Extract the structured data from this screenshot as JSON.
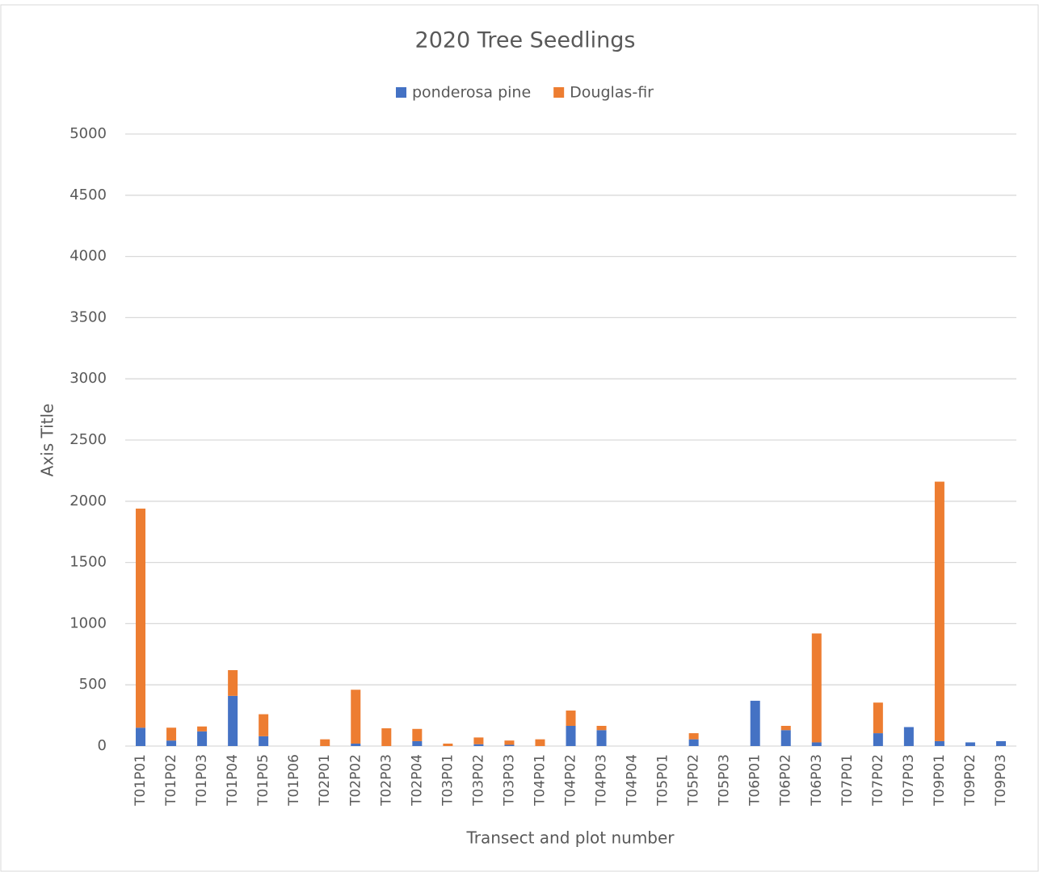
{
  "chart_data": {
    "type": "stacked_bar",
    "title": "2020 Tree Seedlings",
    "x_label": "Transect and plot number",
    "y_label": "Axis Title",
    "categories": [
      "T01P01",
      "T01P02",
      "T01P03",
      "T01P04",
      "T01P05",
      "T01P06",
      "T02P01",
      "T02P02",
      "T02P03",
      "T02P04",
      "T03P01",
      "T03P02",
      "T03P03",
      "T04P01",
      "T04P02",
      "T04P03",
      "T04P04",
      "T05P01",
      "T05P02",
      "T05P03",
      "T06P01",
      "T06P02",
      "T06P03",
      "T07P01",
      "T07P02",
      "T07P03",
      "T09P01",
      "T09P02",
      "T09P03"
    ],
    "series": [
      {
        "name": "ponderosa pine",
        "color": "#4472c4",
        "values": [
          150,
          45,
          120,
          410,
          80,
          0,
          0,
          20,
          0,
          40,
          0,
          15,
          10,
          0,
          165,
          130,
          0,
          0,
          55,
          0,
          370,
          130,
          30,
          0,
          105,
          155,
          40,
          30,
          40
        ]
      },
      {
        "name": "Douglas-fir",
        "color": "#ed7d31",
        "values": [
          1790,
          105,
          40,
          210,
          180,
          0,
          55,
          440,
          145,
          100,
          20,
          55,
          35,
          55,
          125,
          35,
          0,
          0,
          50,
          0,
          0,
          35,
          890,
          0,
          250,
          0,
          2120,
          0,
          0
        ]
      }
    ],
    "ylim": [
      0,
      5000
    ],
    "yticks": [
      0,
      500,
      1000,
      1500,
      2000,
      2500,
      3000,
      3500,
      4000,
      4500,
      5000
    ],
    "grid": true,
    "legend": "top"
  }
}
